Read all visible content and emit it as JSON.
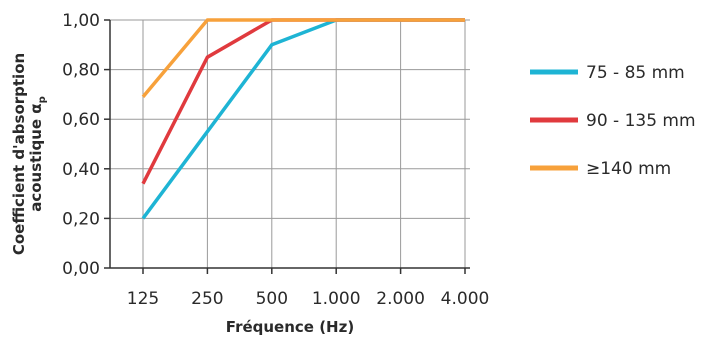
{
  "chart_data": {
    "type": "line",
    "categories": [
      "125",
      "250",
      "500",
      "1.000",
      "2.000",
      "4.000"
    ],
    "xlabel": "Fréquence (Hz)",
    "ylabel_line1": "Coefficient d'absorption",
    "ylabel_line2": "acoustique α",
    "ylabel_subscript": "p",
    "ylim": [
      0,
      1
    ],
    "yticks": [
      "0,00",
      "0,20",
      "0,40",
      "0,60",
      "0,80",
      "1,00"
    ],
    "grid": true,
    "legend_position": "right",
    "series": [
      {
        "name": "75 - 85 mm",
        "color": "#1eb4d4",
        "values": [
          0.2,
          0.55,
          0.9,
          1.0,
          1.0,
          1.0
        ]
      },
      {
        "name": "90 - 135 mm",
        "color": "#e03a3e",
        "values": [
          0.34,
          0.85,
          1.0,
          1.0,
          1.0,
          1.0
        ]
      },
      {
        "name": "≥140 mm",
        "color": "#f7a13b",
        "values": [
          0.69,
          1.0,
          1.0,
          1.0,
          1.0,
          1.0
        ]
      }
    ]
  }
}
